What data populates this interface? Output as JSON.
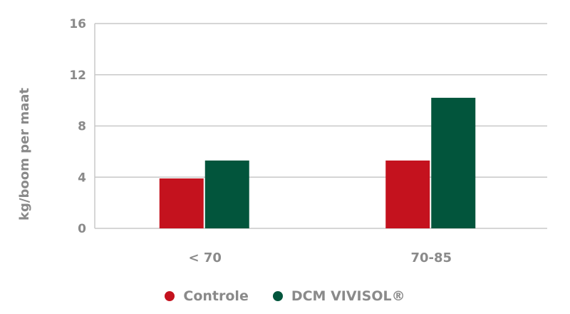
{
  "chart_data": {
    "type": "bar",
    "categories": [
      "< 70",
      "70-85"
    ],
    "series": [
      {
        "name": "Controle",
        "values": [
          3.9,
          5.3
        ],
        "color": "#c4121e"
      },
      {
        "name": "DCM VIVISOL®",
        "values": [
          5.3,
          10.2
        ],
        "color": "#02553c"
      }
    ],
    "xlabel": "",
    "ylabel": "kg/boom per maat",
    "ylim": [
      0,
      16
    ],
    "yticks": [
      0,
      4,
      8,
      12,
      16
    ],
    "grid": true,
    "legend_position": "bottom-center"
  }
}
